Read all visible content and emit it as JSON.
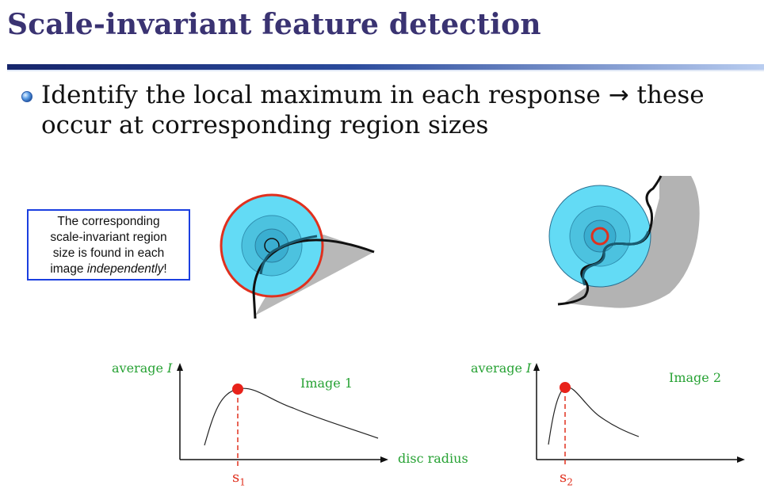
{
  "slide": {
    "title": "Scale-invariant feature detection",
    "bullet": {
      "text_before": "Identify the local maximum in each response ",
      "arrow": "→",
      "text_after": " these occur at corresponding region sizes"
    },
    "callout": {
      "line1": "The corresponding",
      "line2": "scale-invariant region",
      "line3": "size is found in each",
      "line4_prefix": "image ",
      "line4_emph": "independently",
      "line4_suffix": "!"
    },
    "colors": {
      "title": "#3a3372",
      "rule_dark": "#1c2f7a",
      "rule_light": "#8fb0e6",
      "circle_fill": "#5fd8f3",
      "highlight": "#e0301e",
      "curve_label": "#27a234",
      "callout_border": "#1b3fe0",
      "shape_gray": "#b8b8b8"
    },
    "icons": [
      "bullet-dot-icon",
      "right-arrow-icon"
    ]
  },
  "plots": [
    {
      "y_label_prefix": "average ",
      "y_label_var": "I",
      "curve_label": "Image 1",
      "x_label": "disc radius",
      "marker_label_main": "s",
      "marker_label_sub": "1"
    },
    {
      "y_label_prefix": "average ",
      "y_label_var": "I",
      "curve_label": "Image 2",
      "x_label": "",
      "marker_label_main": "s",
      "marker_label_sub": "2"
    }
  ]
}
